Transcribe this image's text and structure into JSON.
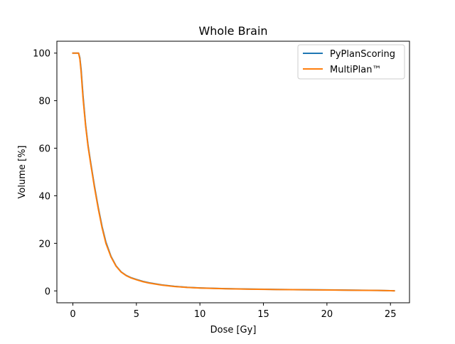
{
  "chart_data": {
    "type": "line",
    "title": "Whole Brain",
    "xlabel": "Dose [Gy]",
    "ylabel": "Volume [%]",
    "xlim": [
      -1.26,
      26.5
    ],
    "ylim": [
      -5,
      105
    ],
    "xticks": [
      0,
      5,
      10,
      15,
      20,
      25
    ],
    "yticks": [
      0,
      20,
      40,
      60,
      80,
      100
    ],
    "grid": false,
    "legend_position": "top-right",
    "series": [
      {
        "name": "PyPlanScoring",
        "color": "#1f77b4",
        "x": [
          0,
          0.3,
          0.45,
          0.55,
          0.65,
          0.8,
          1.0,
          1.2,
          1.4,
          1.7,
          2.0,
          2.3,
          2.6,
          3.0,
          3.4,
          3.8,
          4.2,
          4.6,
          5.0,
          5.5,
          6.0,
          7.0,
          8.0,
          9.0,
          10.0,
          12.0,
          14.0,
          16.0,
          18.0,
          20.0,
          22.0,
          24.0,
          25.0,
          25.3
        ],
        "y": [
          100,
          100,
          100,
          98,
          93,
          82,
          70,
          61,
          54,
          44,
          35,
          27,
          20.5,
          14.5,
          10.5,
          8.0,
          6.5,
          5.5,
          4.8,
          4.0,
          3.4,
          2.5,
          1.9,
          1.5,
          1.25,
          0.95,
          0.75,
          0.6,
          0.5,
          0.4,
          0.3,
          0.2,
          0.1,
          0.05
        ]
      },
      {
        "name": "MultiPlan™",
        "color": "#ff7f0e",
        "x": [
          0,
          0.3,
          0.45,
          0.55,
          0.65,
          0.8,
          1.0,
          1.2,
          1.4,
          1.7,
          2.0,
          2.3,
          2.6,
          3.0,
          3.4,
          3.8,
          4.2,
          4.6,
          5.0,
          5.5,
          6.0,
          7.0,
          8.0,
          9.0,
          10.0,
          12.0,
          14.0,
          16.0,
          18.0,
          20.0,
          22.0,
          24.0,
          25.0,
          25.3
        ],
        "y": [
          100,
          100,
          100,
          97.5,
          92,
          81,
          69.5,
          60.5,
          53.5,
          43.5,
          34.5,
          26.5,
          20,
          14.3,
          10.4,
          7.9,
          6.4,
          5.4,
          4.7,
          3.9,
          3.3,
          2.45,
          1.85,
          1.45,
          1.2,
          0.92,
          0.72,
          0.58,
          0.48,
          0.38,
          0.28,
          0.18,
          0.08,
          0.03
        ]
      }
    ]
  }
}
